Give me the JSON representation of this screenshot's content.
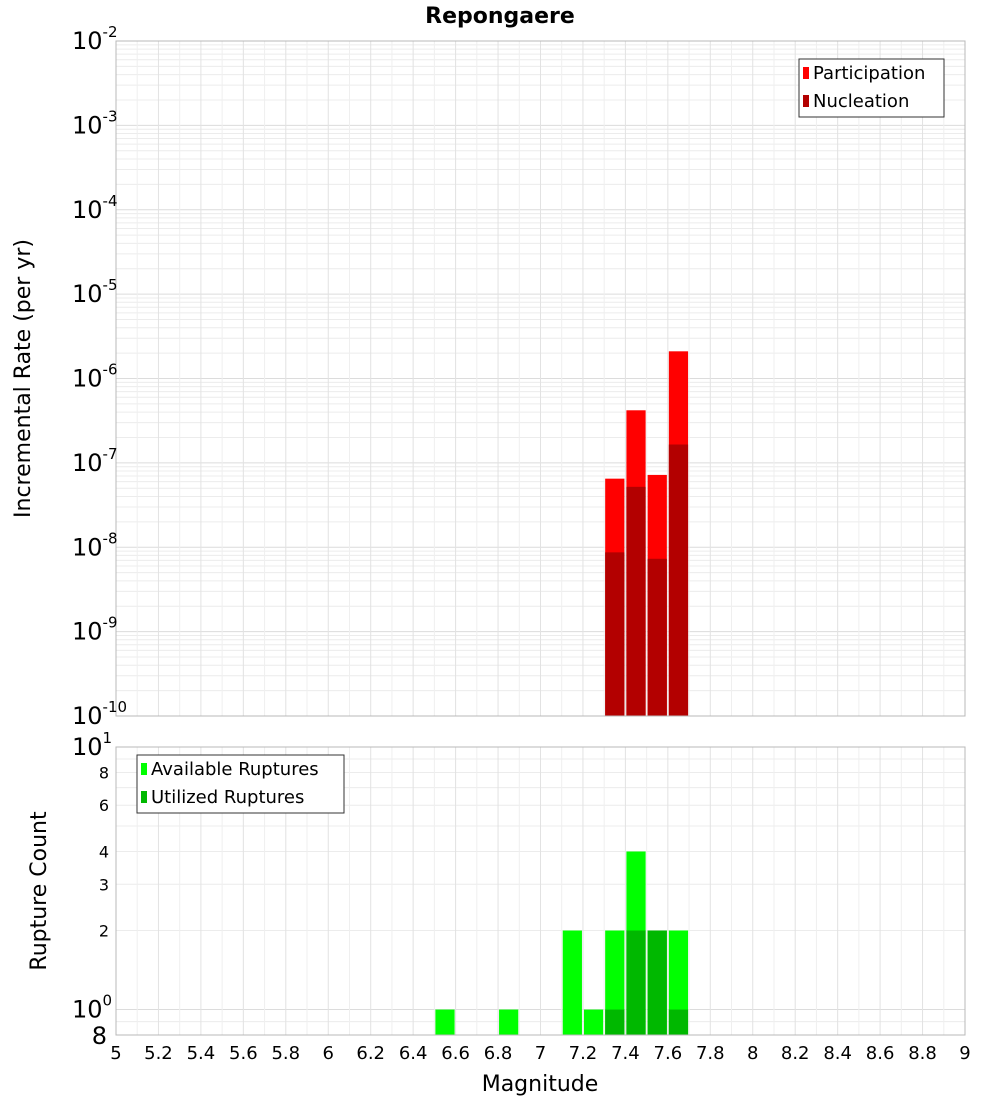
{
  "chart_data": {
    "title": "Repongaere",
    "xlabel": "Magnitude",
    "xlim": [
      5,
      9
    ],
    "xticks": [
      "5",
      "5.2",
      "5.4",
      "5.6",
      "5.8",
      "6",
      "6.2",
      "6.4",
      "6.6",
      "6.8",
      "7",
      "7.2",
      "7.4",
      "7.6",
      "7.8",
      "8",
      "8.2",
      "8.4",
      "8.6",
      "8.8",
      "9"
    ],
    "bin_width": 0.1,
    "panels": [
      {
        "type": "bar",
        "yscale": "log",
        "ylabel": "Incremental Rate (per yr)",
        "ylim": [
          1e-10,
          0.01
        ],
        "yticks": [
          {
            "base": "10",
            "exp": "-2"
          },
          {
            "base": "10",
            "exp": "-3"
          },
          {
            "base": "10",
            "exp": "-4"
          },
          {
            "base": "10",
            "exp": "-5"
          },
          {
            "base": "10",
            "exp": "-6"
          },
          {
            "base": "10",
            "exp": "-7"
          },
          {
            "base": "10",
            "exp": "-8"
          },
          {
            "base": "10",
            "exp": "-9"
          },
          {
            "base": "10",
            "exp": "-10"
          }
        ],
        "legend_position": "top-right",
        "series": [
          {
            "name": "Participation",
            "color": "#ff0000",
            "x": [
              7.35,
              7.45,
              7.55,
              7.65
            ],
            "values": [
              6.5e-08,
              4.2e-07,
              7.2e-08,
              2.1e-06
            ]
          },
          {
            "name": "Nucleation",
            "color": "#b30000",
            "x": [
              7.35,
              7.45,
              7.55,
              7.65
            ],
            "values": [
              8.7e-09,
              5.2e-08,
              7.3e-09,
              1.65e-07
            ]
          }
        ]
      },
      {
        "type": "bar",
        "yscale": "log",
        "ylabel": "Rupture Count",
        "ylim": [
          0.8,
          10
        ],
        "yticks": [
          {
            "value": 10,
            "base": "10",
            "exp": "1"
          },
          {
            "value": 8,
            "label": "8"
          },
          {
            "value": 6,
            "label": "6"
          },
          {
            "value": 4,
            "label": "4"
          },
          {
            "value": 3,
            "label": "3"
          },
          {
            "value": 2,
            "label": "2"
          },
          {
            "value": 1,
            "base": "10",
            "exp": "0"
          },
          {
            "value": 0.8,
            "label": "8"
          }
        ],
        "legend_position": "top-left",
        "series": [
          {
            "name": "Available Ruptures",
            "color": "#00ff00",
            "x": [
              6.55,
              6.85,
              7.15,
              7.25,
              7.35,
              7.45,
              7.55,
              7.65
            ],
            "values": [
              1,
              1,
              2,
              1,
              2,
              4,
              2,
              2
            ]
          },
          {
            "name": "Utilized Ruptures",
            "color": "#00b800",
            "x": [
              7.35,
              7.45,
              7.55,
              7.65
            ],
            "values": [
              1,
              2,
              2,
              1
            ]
          }
        ]
      }
    ]
  }
}
